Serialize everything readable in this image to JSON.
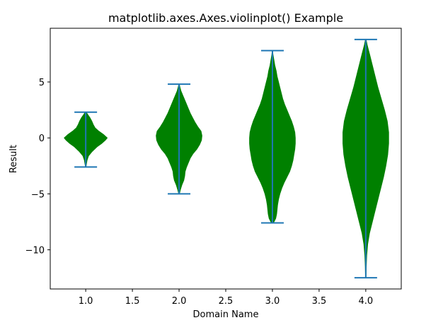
{
  "chart_data": {
    "type": "violin",
    "title": "matplotlib.axes.Axes.violinplot() Example",
    "xlabel": "Domain Name",
    "ylabel": "Result",
    "xlim": [
      0.62,
      4.38
    ],
    "ylim": [
      -13.5,
      9.8
    ],
    "xticks": [
      1.0,
      1.5,
      2.0,
      2.5,
      3.0,
      3.5,
      4.0
    ],
    "xtick_labels": [
      "1.0",
      "1.5",
      "2.0",
      "2.5",
      "3.0",
      "3.5",
      "4.0"
    ],
    "yticks": [
      -10,
      -5,
      0,
      5
    ],
    "ytick_labels": [
      "−10",
      "−5",
      "0",
      "5"
    ],
    "grid": false,
    "body_color": "#008000",
    "line_color": "#1f77b4",
    "violins": [
      {
        "position": 1.0,
        "min": -2.6,
        "max": 2.3,
        "profile": [
          [
            -2.6,
            0.002
          ],
          [
            -2.3,
            0.008
          ],
          [
            -2.0,
            0.014
          ],
          [
            -1.6,
            0.03
          ],
          [
            -1.2,
            0.07
          ],
          [
            -0.8,
            0.12
          ],
          [
            -0.5,
            0.17
          ],
          [
            -0.2,
            0.21
          ],
          [
            0.0,
            0.23
          ],
          [
            0.3,
            0.19
          ],
          [
            0.6,
            0.14
          ],
          [
            0.9,
            0.1
          ],
          [
            1.2,
            0.08
          ],
          [
            1.5,
            0.065
          ],
          [
            1.8,
            0.045
          ],
          [
            2.1,
            0.02
          ],
          [
            2.3,
            0.005
          ]
        ]
      },
      {
        "position": 2.0,
        "min": -5.0,
        "max": 4.8,
        "profile": [
          [
            -5.0,
            0.003
          ],
          [
            -4.6,
            0.015
          ],
          [
            -4.2,
            0.03
          ],
          [
            -3.8,
            0.05
          ],
          [
            -3.4,
            0.06
          ],
          [
            -3.0,
            0.065
          ],
          [
            -2.6,
            0.08
          ],
          [
            -2.2,
            0.1
          ],
          [
            -1.8,
            0.12
          ],
          [
            -1.4,
            0.15
          ],
          [
            -1.0,
            0.19
          ],
          [
            -0.6,
            0.22
          ],
          [
            -0.2,
            0.24
          ],
          [
            0.2,
            0.245
          ],
          [
            0.6,
            0.235
          ],
          [
            1.0,
            0.2
          ],
          [
            1.4,
            0.17
          ],
          [
            1.8,
            0.145
          ],
          [
            2.2,
            0.12
          ],
          [
            2.6,
            0.1
          ],
          [
            3.0,
            0.08
          ],
          [
            3.4,
            0.06
          ],
          [
            3.8,
            0.04
          ],
          [
            4.2,
            0.02
          ],
          [
            4.5,
            0.01
          ],
          [
            4.8,
            0.002
          ]
        ]
      },
      {
        "position": 3.0,
        "min": -7.6,
        "max": 7.8,
        "profile": [
          [
            -7.6,
            0.01
          ],
          [
            -7.2,
            0.035
          ],
          [
            -6.8,
            0.045
          ],
          [
            -6.4,
            0.05
          ],
          [
            -6.0,
            0.055
          ],
          [
            -5.5,
            0.065
          ],
          [
            -5.0,
            0.08
          ],
          [
            -4.5,
            0.1
          ],
          [
            -4.0,
            0.125
          ],
          [
            -3.5,
            0.155
          ],
          [
            -3.0,
            0.185
          ],
          [
            -2.5,
            0.205
          ],
          [
            -2.0,
            0.22
          ],
          [
            -1.5,
            0.23
          ],
          [
            -1.0,
            0.24
          ],
          [
            -0.5,
            0.245
          ],
          [
            0.0,
            0.245
          ],
          [
            0.5,
            0.24
          ],
          [
            1.0,
            0.225
          ],
          [
            1.5,
            0.205
          ],
          [
            2.0,
            0.18
          ],
          [
            2.5,
            0.155
          ],
          [
            3.0,
            0.13
          ],
          [
            3.5,
            0.11
          ],
          [
            4.0,
            0.095
          ],
          [
            4.5,
            0.08
          ],
          [
            5.0,
            0.065
          ],
          [
            5.5,
            0.05
          ],
          [
            6.0,
            0.04
          ],
          [
            6.5,
            0.025
          ],
          [
            7.0,
            0.015
          ],
          [
            7.5,
            0.005
          ],
          [
            7.8,
            0.002
          ]
        ]
      },
      {
        "position": 4.0,
        "min": -12.5,
        "max": 8.8,
        "profile": [
          [
            -12.5,
            0.002
          ],
          [
            -11.5,
            0.005
          ],
          [
            -10.5,
            0.01
          ],
          [
            -9.5,
            0.02
          ],
          [
            -8.5,
            0.04
          ],
          [
            -7.5,
            0.07
          ],
          [
            -6.5,
            0.1
          ],
          [
            -5.5,
            0.13
          ],
          [
            -4.5,
            0.16
          ],
          [
            -3.5,
            0.19
          ],
          [
            -2.5,
            0.215
          ],
          [
            -1.5,
            0.235
          ],
          [
            -0.5,
            0.245
          ],
          [
            0.5,
            0.245
          ],
          [
            1.5,
            0.23
          ],
          [
            2.5,
            0.2
          ],
          [
            3.5,
            0.165
          ],
          [
            4.5,
            0.13
          ],
          [
            5.5,
            0.1
          ],
          [
            6.5,
            0.07
          ],
          [
            7.5,
            0.04
          ],
          [
            8.3,
            0.015
          ],
          [
            8.8,
            0.003
          ]
        ]
      }
    ]
  }
}
